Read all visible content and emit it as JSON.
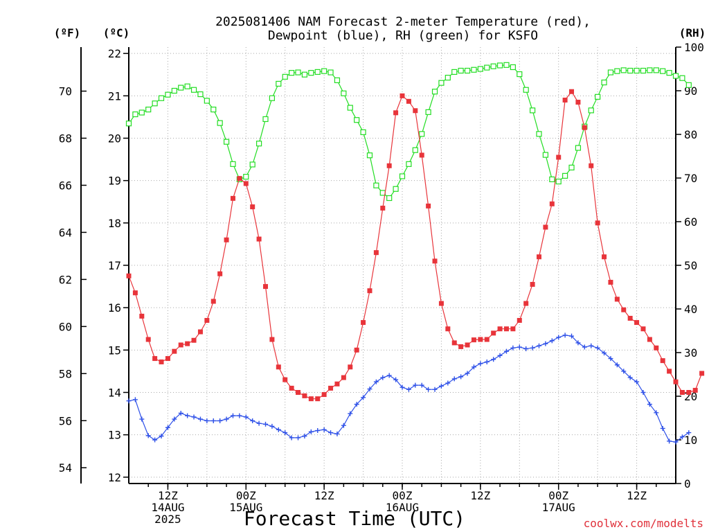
{
  "chart_data": {
    "type": "line",
    "title": [
      "2025081406 NAM Forecast 2-meter Temperature (red),",
      "Dewpoint (blue), RH (green) for KSFO"
    ],
    "xlabel": "Forecast Time (UTC)",
    "credit": "coolwx.com/modelts",
    "axis_units": {
      "left_outer": "(ºF)",
      "left_inner": "(ºC)",
      "right": "(RH)"
    },
    "xlim_hours": [
      0,
      84
    ],
    "ylim_c": [
      11.85,
      22.15
    ],
    "ylim_rh": [
      0,
      100
    ],
    "celsius_ticks": [
      12,
      13,
      14,
      15,
      16,
      17,
      18,
      19,
      20,
      21,
      22
    ],
    "fahrenheit_ticks": [
      54,
      56,
      58,
      60,
      62,
      64,
      66,
      68,
      70
    ],
    "rh_ticks": [
      0,
      10,
      20,
      30,
      40,
      50,
      60,
      70,
      80,
      90,
      100
    ],
    "x_ticks": [
      {
        "hour": 6,
        "lines": [
          "12Z",
          "14AUG",
          "2025"
        ]
      },
      {
        "hour": 18,
        "lines": [
          "00Z",
          "15AUG"
        ]
      },
      {
        "hour": 30,
        "lines": [
          "12Z"
        ]
      },
      {
        "hour": 42,
        "lines": [
          "00Z",
          "16AUG"
        ]
      },
      {
        "hour": 54,
        "lines": [
          "12Z"
        ]
      },
      {
        "hour": 66,
        "lines": [
          "00Z",
          "17AUG"
        ]
      },
      {
        "hour": 78,
        "lines": [
          "12Z"
        ]
      }
    ],
    "series": [
      {
        "label": "Temperature (°C)",
        "color": "#e8343a",
        "marker": "filled-square",
        "axis": "celsius",
        "start_hour": 0,
        "step_hours": 1,
        "values": [
          16.75,
          16.35,
          15.8,
          15.25,
          14.8,
          14.72,
          14.8,
          14.97,
          15.12,
          15.15,
          15.23,
          15.43,
          15.7,
          16.15,
          16.8,
          17.6,
          18.58,
          19.05,
          18.93,
          18.38,
          17.62,
          16.5,
          15.25,
          14.6,
          14.3,
          14.1,
          14.0,
          13.92,
          13.85,
          13.85,
          13.95,
          14.1,
          14.2,
          14.35,
          14.6,
          15.0,
          15.65,
          16.4,
          17.3,
          18.35,
          19.35,
          20.6,
          21.0,
          20.87,
          20.65,
          19.6,
          18.4,
          17.1,
          16.1,
          15.5,
          15.17,
          15.08,
          15.12,
          15.24,
          15.25,
          15.25,
          15.4,
          15.5,
          15.5,
          15.5,
          15.7,
          16.1,
          16.55,
          17.2,
          17.9,
          18.45,
          19.55,
          20.9,
          21.1,
          20.85,
          20.25,
          19.35,
          18.0,
          17.2,
          16.6,
          16.2,
          15.95,
          15.75,
          15.65,
          15.5,
          15.25,
          15.05,
          14.75,
          14.5,
          14.25,
          14.0,
          14.0,
          14.05,
          14.45
        ]
      },
      {
        "label": "Dewpoint (°C)",
        "color": "#2e50e8",
        "marker": "plus",
        "axis": "celsius",
        "start_hour": 0,
        "step_hours": 1,
        "values": [
          13.8,
          13.83,
          13.37,
          12.98,
          12.88,
          12.97,
          13.17,
          13.37,
          13.51,
          13.45,
          13.42,
          13.37,
          13.33,
          13.33,
          13.33,
          13.37,
          13.45,
          13.45,
          13.42,
          13.33,
          13.27,
          13.25,
          13.2,
          13.12,
          13.05,
          12.93,
          12.93,
          12.97,
          13.07,
          13.1,
          13.12,
          13.05,
          13.02,
          13.22,
          13.5,
          13.72,
          13.88,
          14.08,
          14.25,
          14.35,
          14.4,
          14.3,
          14.12,
          14.07,
          14.17,
          14.17,
          14.07,
          14.07,
          14.15,
          14.22,
          14.32,
          14.37,
          14.45,
          14.6,
          14.68,
          14.72,
          14.78,
          14.87,
          14.97,
          15.05,
          15.07,
          15.03,
          15.05,
          15.1,
          15.15,
          15.22,
          15.3,
          15.35,
          15.33,
          15.17,
          15.07,
          15.1,
          15.05,
          14.93,
          14.8,
          14.65,
          14.5,
          14.35,
          14.25,
          14.0,
          13.72,
          13.52,
          13.15,
          12.85,
          12.83,
          12.95,
          13.05
        ]
      },
      {
        "label": "RH (%)",
        "color": "#22dd22",
        "marker": "open-square",
        "axis": "rh",
        "start_hour": 0,
        "step_hours": 1,
        "values": [
          82.5,
          84.6,
          85.0,
          85.7,
          87.1,
          88.3,
          89.1,
          90.0,
          90.7,
          91.0,
          90.2,
          89.2,
          87.7,
          85.7,
          82.6,
          78.3,
          73.2,
          69.7,
          70.3,
          73.1,
          77.9,
          83.5,
          88.3,
          91.6,
          93.2,
          94.1,
          94.2,
          93.7,
          94.1,
          94.3,
          94.5,
          94.2,
          92.4,
          89.4,
          86.1,
          83.3,
          80.5,
          75.2,
          68.3,
          66.6,
          65.4,
          67.5,
          70.4,
          73.2,
          76.4,
          80.1,
          85.1,
          89.8,
          91.8,
          93.0,
          94.3,
          94.6,
          94.6,
          94.8,
          95.0,
          95.3,
          95.6,
          95.8,
          95.9,
          95.4,
          93.8,
          90.2,
          85.5,
          80.1,
          75.3,
          69.7,
          69.2,
          70.5,
          72.4,
          76.9,
          81.8,
          85.5,
          88.6,
          91.9,
          94.2,
          94.5,
          94.7,
          94.6,
          94.6,
          94.6,
          94.7,
          94.7,
          94.5,
          94.1,
          93.4,
          92.9,
          91.3
        ]
      }
    ]
  }
}
